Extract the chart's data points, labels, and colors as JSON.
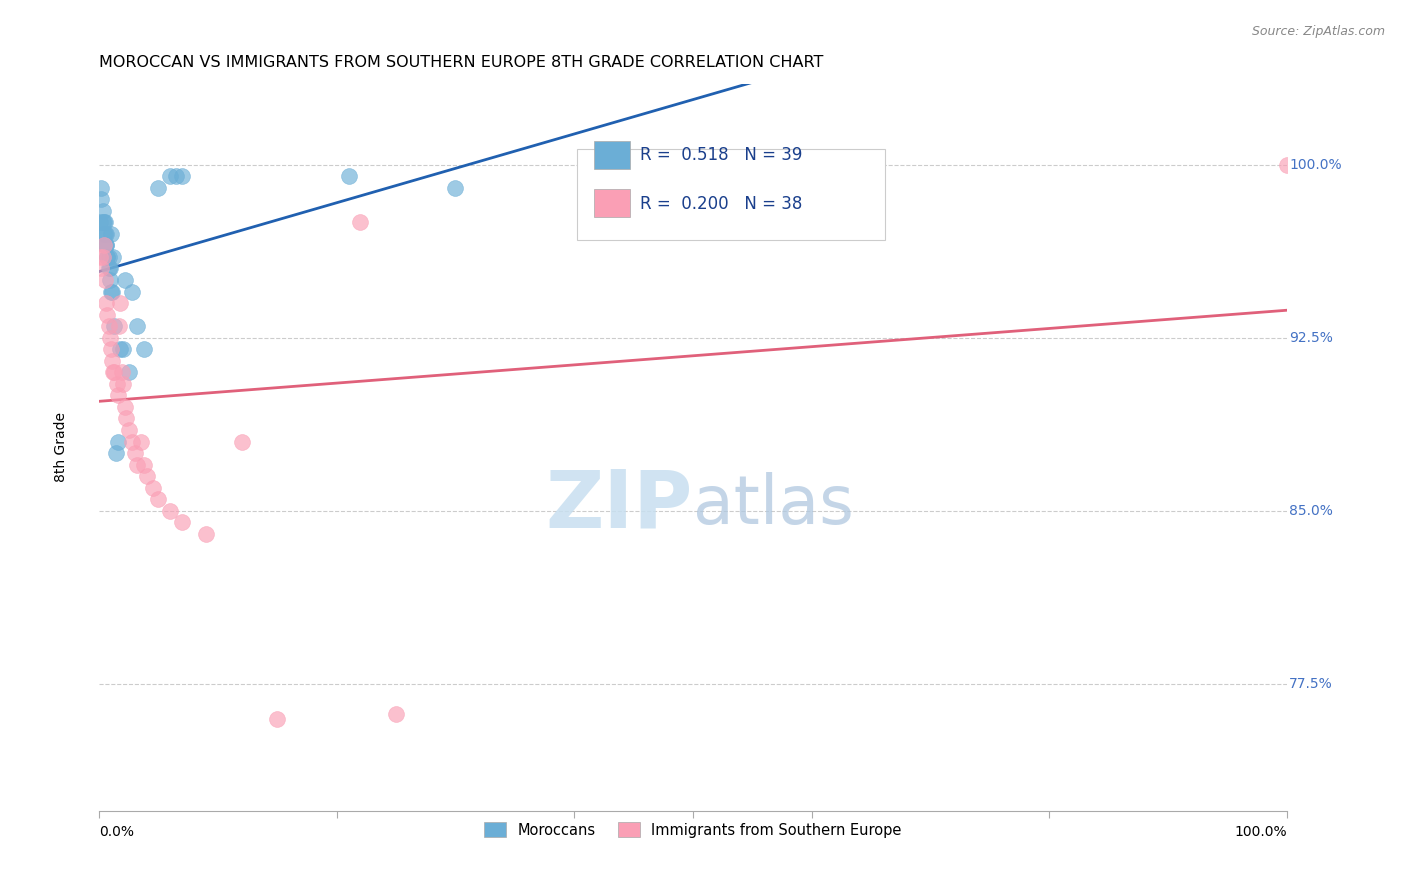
{
  "title": "MOROCCAN VS IMMIGRANTS FROM SOUTHERN EUROPE 8TH GRADE CORRELATION CHART",
  "source": "Source: ZipAtlas.com",
  "ylabel": "8th Grade",
  "ytick_labels": [
    "100.0%",
    "92.5%",
    "85.0%",
    "77.5%"
  ],
  "ytick_values": [
    1.0,
    0.925,
    0.85,
    0.775
  ],
  "xlim": [
    0.0,
    1.0
  ],
  "ylim": [
    0.72,
    1.035
  ],
  "legend_r_blue": "0.518",
  "legend_n_blue": "39",
  "legend_r_pink": "0.200",
  "legend_n_pink": "38",
  "legend_label_blue": "Moroccans",
  "legend_label_pink": "Immigrants from Southern Europe",
  "blue_color": "#6baed6",
  "pink_color": "#fa9fb5",
  "blue_line_color": "#2060b0",
  "pink_line_color": "#e0607a",
  "watermark_zip": "ZIP",
  "watermark_atlas": "atlas",
  "moroccan_x": [
    0.001,
    0.002,
    0.002,
    0.003,
    0.003,
    0.004,
    0.004,
    0.005,
    0.005,
    0.005,
    0.006,
    0.006,
    0.006,
    0.007,
    0.007,
    0.008,
    0.008,
    0.009,
    0.009,
    0.01,
    0.01,
    0.011,
    0.012,
    0.013,
    0.014,
    0.016,
    0.018,
    0.02,
    0.022,
    0.025,
    0.028,
    0.032,
    0.038,
    0.05,
    0.06,
    0.065,
    0.07,
    0.21,
    0.3
  ],
  "moroccan_y": [
    0.975,
    0.985,
    0.99,
    0.975,
    0.98,
    0.97,
    0.975,
    0.965,
    0.97,
    0.975,
    0.965,
    0.97,
    0.965,
    0.96,
    0.96,
    0.955,
    0.96,
    0.955,
    0.95,
    0.945,
    0.97,
    0.945,
    0.96,
    0.93,
    0.875,
    0.88,
    0.92,
    0.92,
    0.95,
    0.91,
    0.945,
    0.93,
    0.92,
    0.99,
    0.995,
    0.995,
    0.995,
    0.995,
    0.99
  ],
  "southern_x": [
    0.001,
    0.002,
    0.003,
    0.004,
    0.005,
    0.006,
    0.007,
    0.008,
    0.009,
    0.01,
    0.011,
    0.012,
    0.013,
    0.015,
    0.016,
    0.017,
    0.018,
    0.019,
    0.02,
    0.022,
    0.023,
    0.025,
    0.028,
    0.03,
    0.032,
    0.035,
    0.038,
    0.04,
    0.045,
    0.05,
    0.06,
    0.07,
    0.09,
    0.12,
    0.15,
    0.22,
    0.25,
    1.0
  ],
  "southern_y": [
    0.96,
    0.955,
    0.96,
    0.965,
    0.95,
    0.94,
    0.935,
    0.93,
    0.925,
    0.92,
    0.915,
    0.91,
    0.91,
    0.905,
    0.9,
    0.93,
    0.94,
    0.91,
    0.905,
    0.895,
    0.89,
    0.885,
    0.88,
    0.875,
    0.87,
    0.88,
    0.87,
    0.865,
    0.86,
    0.855,
    0.85,
    0.845,
    0.84,
    0.88,
    0.76,
    0.975,
    0.762,
    1.0
  ]
}
